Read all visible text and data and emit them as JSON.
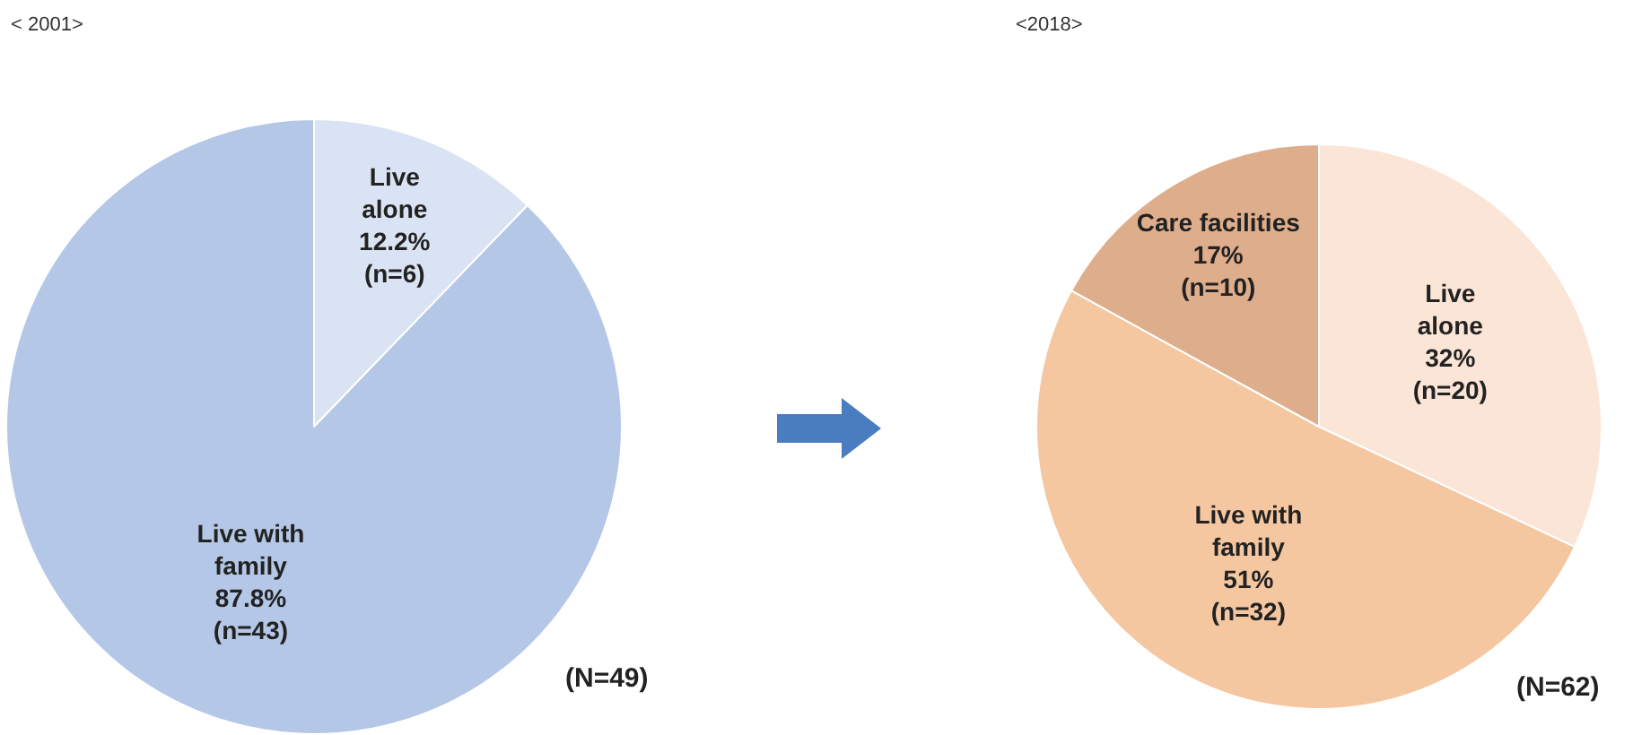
{
  "chart_data": [
    {
      "type": "pie",
      "title": "< 2001>",
      "categories": [
        "Live\nalone",
        "Live with\nfamily"
      ],
      "values": [
        12.2,
        87.8
      ],
      "colors": [
        "#dae3f3",
        "#b4c7e7"
      ],
      "value_labels": [
        "12.2%\n(n=6)",
        "87.8%\n(n=43)"
      ],
      "annotations": [
        "(N=49)"
      ],
      "legend": false
    },
    {
      "type": "pie",
      "title": "<2018>",
      "categories": [
        "Live\nalone",
        "Live with\nfamily",
        "Care facilities"
      ],
      "values": [
        32,
        51,
        17
      ],
      "colors": [
        "#fbe5d6",
        "#f4c7a1",
        "#deae8c"
      ],
      "value_labels": [
        "32%\n(n=20)",
        "51%\n(n=32)",
        "17%\n(n=10)"
      ],
      "annotations": [
        "(N=62)"
      ],
      "legend": false
    }
  ]
}
